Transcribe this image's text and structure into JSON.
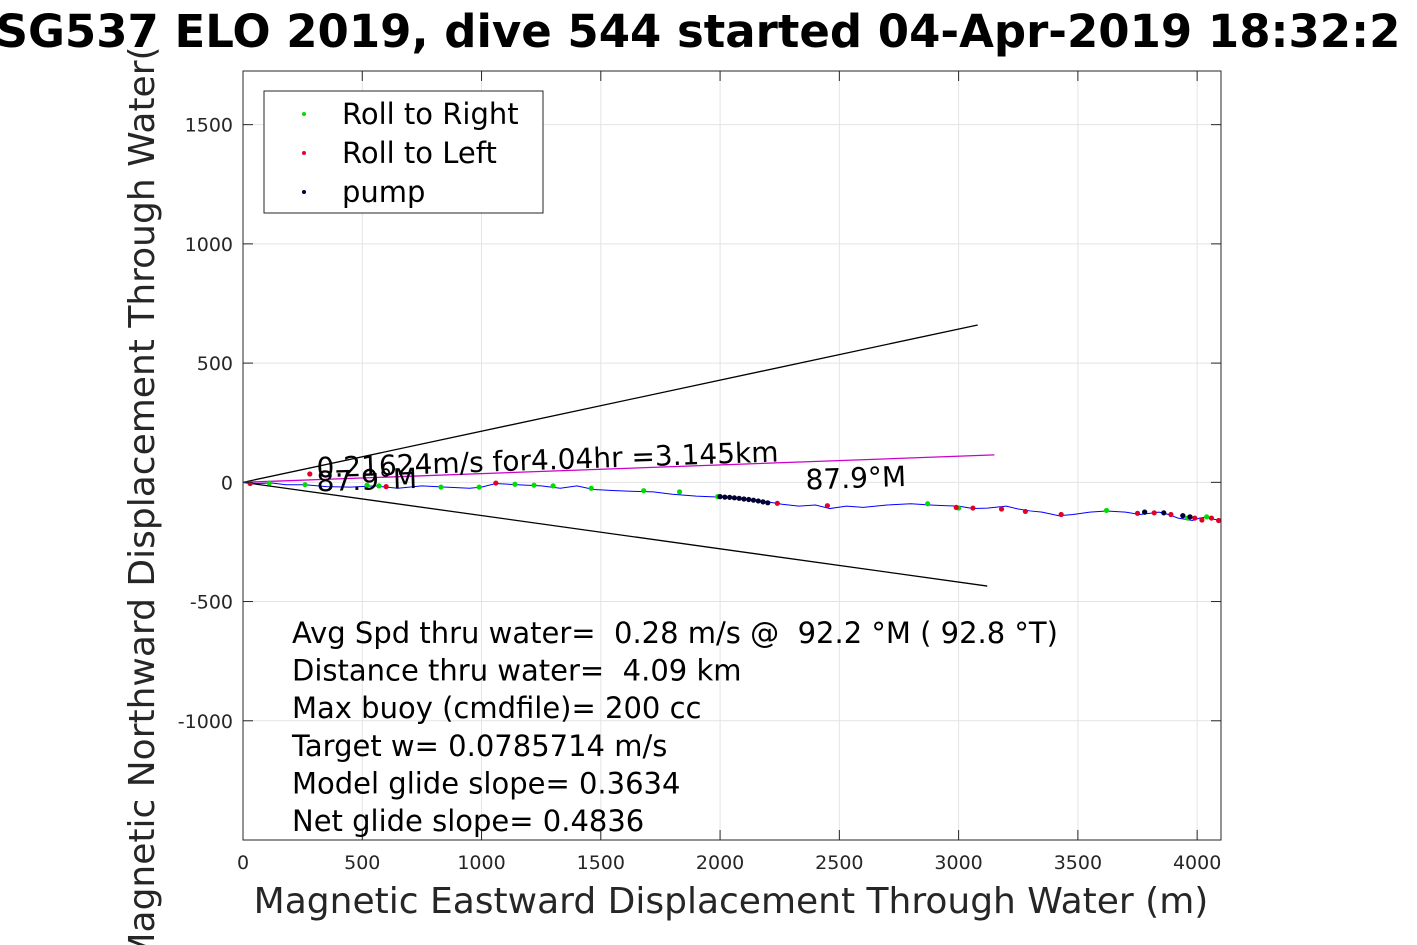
{
  "chart_data": {
    "type": "scatter",
    "title": "SG537 ELO 2019, dive 544 started 04-Apr-2019 18:32:2",
    "xlabel": "Magnetic Eastward Displacement Through Water (m)",
    "ylabel": "Magnetic Northward Displacement Through Water(",
    "xlim": [
      0,
      4100
    ],
    "ylim": [
      -1500,
      1725
    ],
    "xticks": [
      0,
      500,
      1000,
      1500,
      2000,
      2500,
      3000,
      3500,
      4000
    ],
    "yticks": [
      1500,
      1000,
      500,
      0,
      -500,
      -1000
    ],
    "xtick_labels": [
      "0",
      "500",
      "1000",
      "1500",
      "2000",
      "2500",
      "3000",
      "3500",
      "4000"
    ],
    "ytick_labels": [
      "1500",
      "1000",
      "500",
      "0",
      "-500",
      "-1000"
    ],
    "grid": true,
    "legend_position": "top-left",
    "legend": [
      {
        "label": "Roll to Right",
        "color": "#00dd00"
      },
      {
        "label": "Roll to Left",
        "color": "#e0002a"
      },
      {
        "label": "pump",
        "color": "#000033"
      }
    ],
    "track": {
      "color": "#0000ff",
      "x": [
        0,
        60,
        120,
        180,
        260,
        350,
        450,
        550,
        650,
        750,
        850,
        950,
        1000,
        1060,
        1150,
        1250,
        1330,
        1400,
        1470,
        1560,
        1640,
        1720,
        1800,
        1900,
        2000,
        2080,
        2150,
        2200,
        2260,
        2330,
        2400,
        2460,
        2530,
        2600,
        2700,
        2800,
        2880,
        2950,
        3000,
        3060,
        3120,
        3200,
        3250,
        3300,
        3350,
        3420,
        3480,
        3550,
        3620,
        3700,
        3760,
        3800,
        3840,
        3880,
        3920,
        3950,
        3980,
        4010,
        4040,
        4070,
        4100
      ],
      "y": [
        0,
        -5,
        -3,
        -10,
        -10,
        -18,
        -20,
        -15,
        -25,
        -15,
        -20,
        -25,
        -20,
        -5,
        -10,
        -15,
        -25,
        -15,
        -30,
        -35,
        -38,
        -40,
        -50,
        -58,
        -62,
        -70,
        -75,
        -82,
        -92,
        -100,
        -95,
        -110,
        -100,
        -105,
        -95,
        -90,
        -95,
        -98,
        -100,
        -110,
        -108,
        -100,
        -112,
        -120,
        -125,
        -140,
        -135,
        -125,
        -120,
        -125,
        -135,
        -130,
        -125,
        -135,
        -150,
        -155,
        -160,
        -150,
        -145,
        -155,
        -160
      ]
    },
    "series": [
      {
        "name": "Roll to Right",
        "color": "#00dd00",
        "x": [
          110,
          260,
          520,
          570,
          830,
          990,
          1140,
          1220,
          1300,
          1460,
          1680,
          1830,
          1990,
          2870,
          3000,
          3620,
          3780,
          3960,
          4040
        ],
        "y": [
          -3,
          -10,
          -12,
          -15,
          -20,
          -20,
          -8,
          -12,
          -15,
          -25,
          -35,
          -40,
          -60,
          -90,
          -108,
          -118,
          -125,
          -150,
          -145
        ]
      },
      {
        "name": "Roll to Left",
        "color": "#e0002a",
        "x": [
          30,
          280,
          600,
          1060,
          2240,
          2450,
          2990,
          3060,
          3180,
          3280,
          3430,
          3750,
          3820,
          3890,
          3940,
          3990,
          4020,
          4060,
          4090
        ],
        "y": [
          -5,
          35,
          -18,
          -3,
          -88,
          -98,
          -105,
          -108,
          -112,
          -122,
          -135,
          -130,
          -128,
          -135,
          -140,
          -150,
          -158,
          -150,
          -160
        ]
      },
      {
        "name": "pump",
        "color": "#000033",
        "x": [
          2000,
          2020,
          2040,
          2060,
          2080,
          2100,
          2120,
          2140,
          2160,
          2180,
          2200,
          3780,
          3860,
          3940,
          3970
        ],
        "y": [
          -60,
          -62,
          -63,
          -65,
          -67,
          -70,
          -72,
          -75,
          -78,
          -82,
          -86,
          -125,
          -128,
          -140,
          -145
        ]
      }
    ],
    "reference_lines": [
      {
        "color": "#000000",
        "x": [
          0,
          3080
        ],
        "y": [
          0,
          660
        ]
      },
      {
        "color": "#000000",
        "x": [
          0,
          3120
        ],
        "y": [
          0,
          -435
        ]
      },
      {
        "color": "#cc00cc",
        "x": [
          0,
          3150
        ],
        "y": [
          0,
          115
        ]
      }
    ],
    "annotations": [
      {
        "text": "0.21624m/s for4.04hr =3.145km",
        "x": 310,
        "y": 20,
        "angle": -2
      },
      {
        "text": "87.9°M",
        "x": 310,
        "y": -38,
        "angle": -2
      },
      {
        "text": "87.9°M",
        "x": 2360,
        "y": -30,
        "angle": -2
      }
    ],
    "stats": [
      "Avg Spd thru water=  0.28 m/s @  92.2 °M ( 92.8 °T)",
      "Distance thru water=  4.09 km",
      "Max buoy (cmdfile)= 200 cc",
      "Target w= 0.0785714 m/s",
      "Model glide slope= 0.3634",
      "Net glide slope= 0.4836"
    ]
  }
}
